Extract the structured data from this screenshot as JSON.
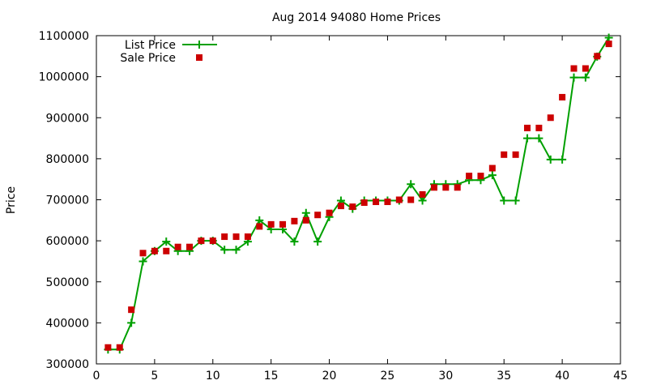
{
  "chart_data": {
    "type": "line",
    "title": "Aug 2014 94080 Home Prices",
    "xlabel": "",
    "ylabel": "Price",
    "xlim": [
      0,
      45
    ],
    "ylim": [
      300000,
      1100000
    ],
    "xticks": [
      0,
      5,
      10,
      15,
      20,
      25,
      30,
      35,
      40,
      45
    ],
    "yticks": [
      300000,
      400000,
      500000,
      600000,
      700000,
      800000,
      900000,
      1000000,
      1100000
    ],
    "grid": false,
    "legend_position": "top-left",
    "series": [
      {
        "name": "List Price",
        "style": "line-with-plus-markers",
        "color": "#00a000",
        "x": [
          1,
          2,
          3,
          4,
          5,
          6,
          7,
          8,
          9,
          10,
          11,
          12,
          13,
          14,
          15,
          16,
          17,
          18,
          19,
          20,
          21,
          22,
          23,
          24,
          25,
          26,
          27,
          28,
          29,
          30,
          31,
          32,
          33,
          34,
          35,
          36,
          37,
          38,
          39,
          40,
          41,
          42,
          43,
          44
        ],
        "values": [
          335000,
          335000,
          400000,
          550000,
          575000,
          598000,
          575000,
          575000,
          600000,
          600000,
          578000,
          578000,
          598000,
          650000,
          628000,
          628000,
          598000,
          668000,
          598000,
          658000,
          698000,
          678000,
          698000,
          698000,
          698000,
          698000,
          738000,
          698000,
          738000,
          738000,
          738000,
          748000,
          748000,
          760000,
          698000,
          698000,
          850000,
          850000,
          798000,
          798000,
          998000,
          998000,
          1049000,
          1095000
        ]
      },
      {
        "name": "Sale Price",
        "style": "square-markers",
        "color": "#cc0000",
        "x": [
          1,
          2,
          3,
          4,
          5,
          6,
          7,
          8,
          9,
          10,
          11,
          12,
          13,
          14,
          15,
          16,
          17,
          18,
          19,
          20,
          21,
          22,
          23,
          24,
          25,
          26,
          27,
          28,
          29,
          30,
          31,
          32,
          33,
          34,
          35,
          36,
          37,
          38,
          39,
          40,
          41,
          42,
          43,
          44
        ],
        "values": [
          340000,
          340000,
          432000,
          570000,
          575000,
          575000,
          585000,
          585000,
          600000,
          600000,
          610000,
          610000,
          610000,
          635000,
          640000,
          640000,
          648000,
          650000,
          663000,
          668000,
          685000,
          683000,
          693000,
          695000,
          695000,
          700000,
          700000,
          713000,
          730000,
          730000,
          730000,
          758000,
          758000,
          777000,
          810000,
          810000,
          875000,
          875000,
          900000,
          950000,
          1020000,
          1020000,
          1050000,
          1080000
        ]
      }
    ]
  }
}
